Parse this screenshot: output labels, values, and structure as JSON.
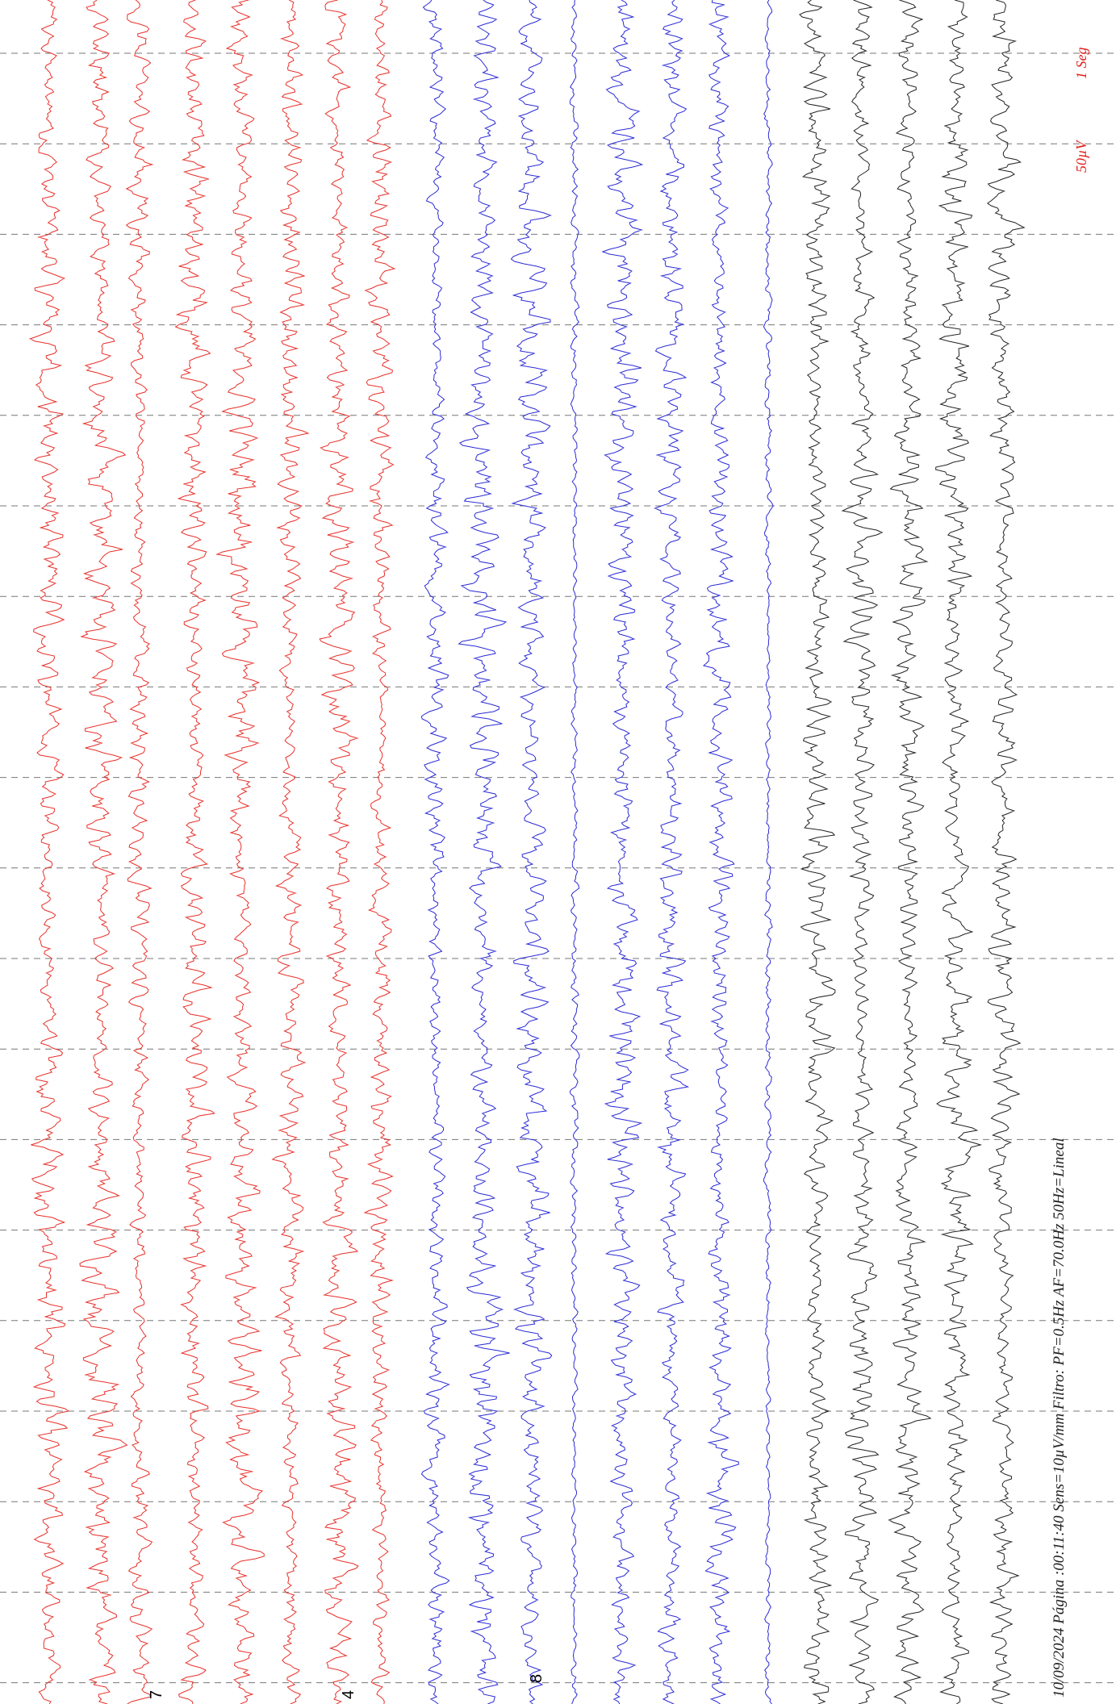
{
  "footer": {
    "info": "10/09/2024 Página :00:11:40 Sens=10µV/mm Filtro: PF=0.5Hz AF=70.0Hz 50Hz=Lineal"
  },
  "scale": {
    "amplitude": "50µV",
    "time": "1 Seg"
  },
  "channel_marks": [
    "7",
    "4",
    "8"
  ]
}
